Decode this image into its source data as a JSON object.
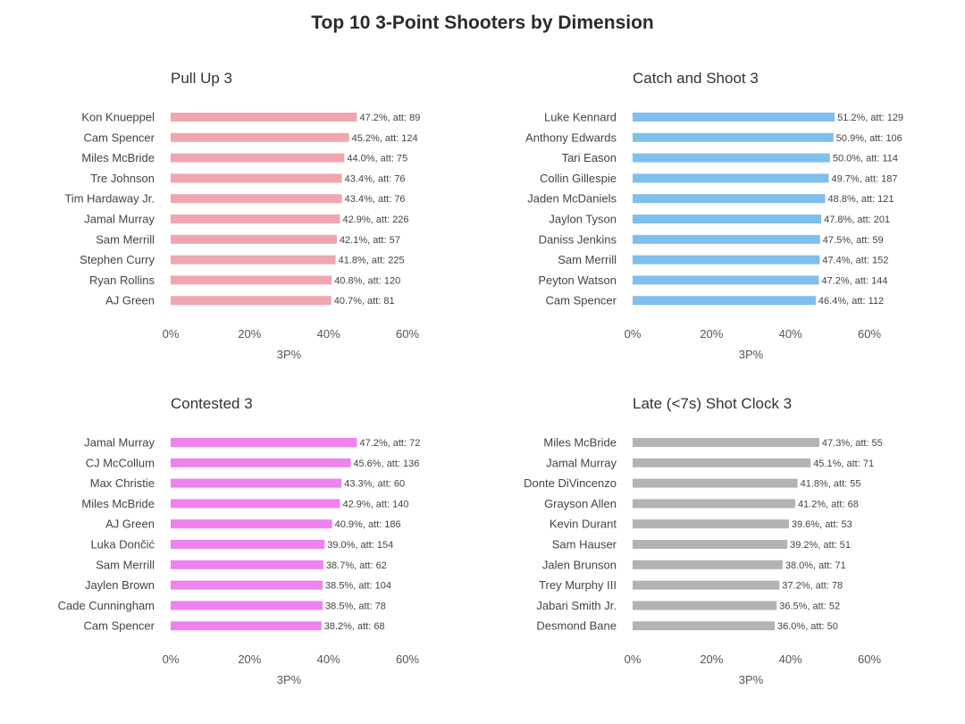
{
  "title": "Top 10 3-Point Shooters by Dimension",
  "chart_data": [
    {
      "type": "bar",
      "orientation": "horizontal",
      "title": "Pull Up 3",
      "xlabel": "3P%",
      "xlim": [
        0,
        60
      ],
      "xticks": [
        "0%",
        "20%",
        "40%",
        "60%"
      ],
      "color": "#f0a6b0",
      "categories": [
        "Kon Knueppel",
        "Cam Spencer",
        "Miles McBride",
        "Tre Johnson",
        "Tim Hardaway Jr.",
        "Jamal Murray",
        "Sam Merrill",
        "Stephen Curry",
        "Ryan Rollins",
        "AJ Green"
      ],
      "values": [
        47.2,
        45.2,
        44.0,
        43.4,
        43.4,
        42.9,
        42.1,
        41.8,
        40.8,
        40.7
      ],
      "labels": [
        "47.2%, att: 89",
        "45.2%, att: 124",
        "44.0%, att: 75",
        "43.4%, att: 76",
        "43.4%, att: 76",
        "42.9%, att: 226",
        "42.1%, att: 57",
        "41.8%, att: 225",
        "40.8%, att: 120",
        "40.7%, att: 81"
      ]
    },
    {
      "type": "bar",
      "orientation": "horizontal",
      "title": "Catch and Shoot 3",
      "xlabel": "3P%",
      "xlim": [
        0,
        60
      ],
      "xticks": [
        "0%",
        "20%",
        "40%",
        "60%"
      ],
      "color": "#7fbfec",
      "categories": [
        "Luke Kennard",
        "Anthony Edwards",
        "Tari Eason",
        "Collin Gillespie",
        "Jaden McDaniels",
        "Jaylon Tyson",
        "Daniss Jenkins",
        "Sam Merrill",
        "Peyton Watson",
        "Cam Spencer"
      ],
      "values": [
        51.2,
        50.9,
        50.0,
        49.7,
        48.8,
        47.8,
        47.5,
        47.4,
        47.2,
        46.4
      ],
      "labels": [
        "51.2%, att: 129",
        "50.9%, att: 106",
        "50.0%, att: 114",
        "49.7%, att: 187",
        "48.8%, att: 121",
        "47.8%, att: 201",
        "47.5%, att: 59",
        "47.4%, att: 152",
        "47.2%, att: 144",
        "46.4%, att: 112"
      ]
    },
    {
      "type": "bar",
      "orientation": "horizontal",
      "title": "Contested 3",
      "xlabel": "3P%",
      "xlim": [
        0,
        60
      ],
      "xticks": [
        "0%",
        "20%",
        "40%",
        "60%"
      ],
      "color": "#ee82ee",
      "categories": [
        "Jamal Murray",
        "CJ McCollum",
        "Max Christie",
        "Miles McBride",
        "AJ Green",
        "Luka Dončić",
        "Sam Merrill",
        "Jaylen Brown",
        "Cade Cunningham",
        "Cam Spencer"
      ],
      "values": [
        47.2,
        45.6,
        43.3,
        42.9,
        40.9,
        39.0,
        38.7,
        38.5,
        38.5,
        38.2
      ],
      "labels": [
        "47.2%, att: 72",
        "45.6%, att: 136",
        "43.3%, att: 60",
        "42.9%, att: 140",
        "40.9%, att: 186",
        "39.0%, att: 154",
        "38.7%, att: 62",
        "38.5%, att: 104",
        "38.5%, att: 78",
        "38.2%, att: 68"
      ]
    },
    {
      "type": "bar",
      "orientation": "horizontal",
      "title": "Late (<7s) Shot Clock 3",
      "xlabel": "3P%",
      "xlim": [
        0,
        60
      ],
      "xticks": [
        "0%",
        "20%",
        "40%",
        "60%"
      ],
      "color": "#b3b3b3",
      "categories": [
        "Miles McBride",
        "Jamal Murray",
        "Donte DiVincenzo",
        "Grayson Allen",
        "Kevin Durant",
        "Sam Hauser",
        "Jalen Brunson",
        "Trey Murphy III",
        "Jabari Smith Jr.",
        "Desmond Bane"
      ],
      "values": [
        47.3,
        45.1,
        41.8,
        41.2,
        39.6,
        39.2,
        38.0,
        37.2,
        36.5,
        36.0
      ],
      "labels": [
        "47.3%, att: 55",
        "45.1%, att: 71",
        "41.8%, att: 55",
        "41.2%, att: 68",
        "39.6%, att: 53",
        "39.2%, att: 51",
        "38.0%, att: 71",
        "37.2%, att: 78",
        "36.5%, att: 52",
        "36.0%, att: 50"
      ]
    }
  ]
}
